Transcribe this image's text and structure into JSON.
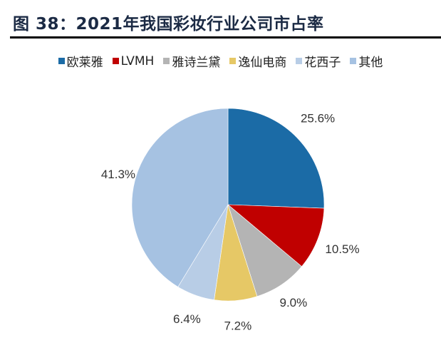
{
  "chart_data": {
    "type": "pie",
    "title": "图 38：2021年我国彩妆行业公司市占率",
    "categories": [
      "欧莱雅",
      "LVMH",
      "雅诗兰黛",
      "逸仙电商",
      "花西子",
      "其他"
    ],
    "values": [
      25.6,
      10.5,
      9.0,
      7.2,
      6.4,
      41.3
    ],
    "labels": [
      "25.6%",
      "10.5%",
      "9.0%",
      "7.2%",
      "6.4%",
      "41.3%"
    ],
    "colors": [
      "#1b6ba6",
      "#c00000",
      "#b4b4b4",
      "#e6c866",
      "#b8cde6",
      "#a6c2e2"
    ],
    "legend_position": "top",
    "start_angle_deg": 0,
    "direction": "clockwise"
  }
}
